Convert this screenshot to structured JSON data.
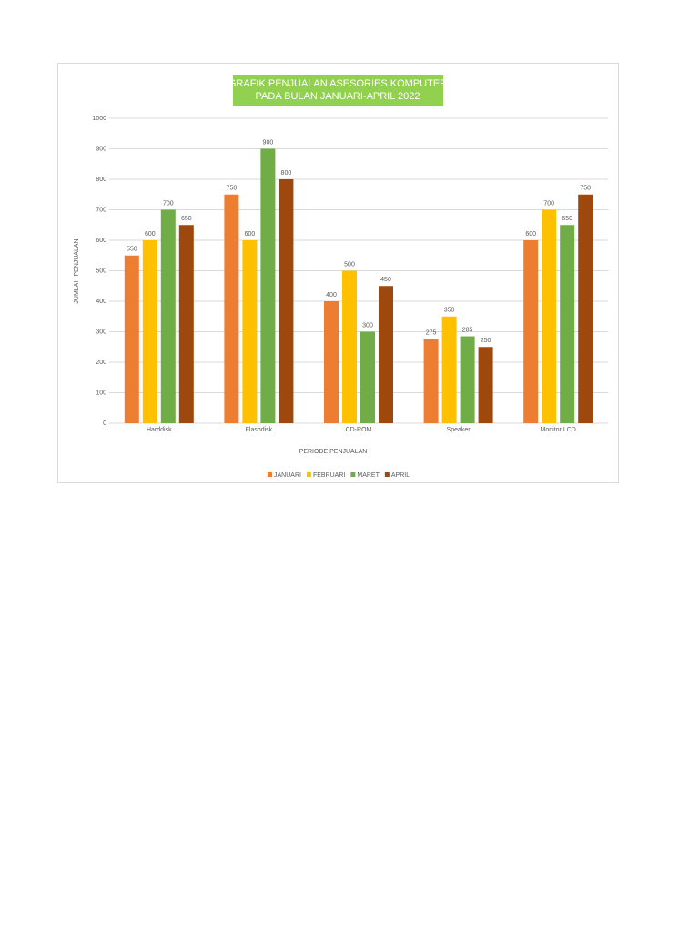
{
  "chart_data": {
    "type": "bar",
    "title": [
      "GRAFIK PENJUALAN ASESORIES KOMPUTER",
      "PADA BULAN JANUARI-APRIL 2022"
    ],
    "x_label": "PERIODE PENJUALAN",
    "y_label": "JUMLAH PENJUALAN",
    "categories": [
      "Harddisk",
      "Flashdisk",
      "CD-ROM",
      "Speaker",
      "Monitor LCD"
    ],
    "series": [
      {
        "name": "JANUARI",
        "color": "#ed7d31",
        "values": [
          550,
          750,
          400,
          275,
          600
        ]
      },
      {
        "name": "FEBRUARI",
        "color": "#ffc000",
        "values": [
          600,
          600,
          500,
          350,
          700
        ]
      },
      {
        "name": "MARET",
        "color": "#70ad47",
        "values": [
          700,
          900,
          300,
          285,
          650
        ]
      },
      {
        "name": "APRIL",
        "color": "#9e480e",
        "values": [
          650,
          800,
          450,
          250,
          750
        ]
      }
    ],
    "ylim": [
      0,
      1000
    ],
    "yticks": [
      0,
      100,
      200,
      300,
      400,
      500,
      600,
      700,
      800,
      900,
      1000
    ],
    "grid": true,
    "legend": "bottom",
    "title_background": "#92d050"
  }
}
